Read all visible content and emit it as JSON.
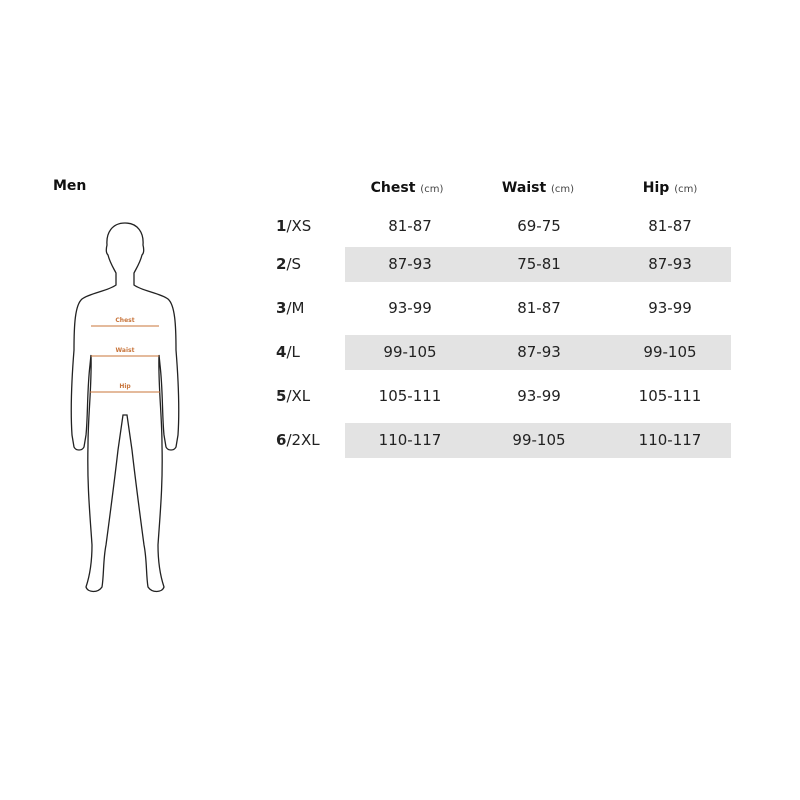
{
  "title": "Men",
  "figure": {
    "labels": [
      "Chest",
      "Waist",
      "Hip"
    ],
    "accent_color": "#c8743a"
  },
  "headers": [
    {
      "name": "Chest",
      "unit": "(cm)"
    },
    {
      "name": "Waist",
      "unit": "(cm)"
    },
    {
      "name": "Hip",
      "unit": "(cm)"
    }
  ],
  "rows": [
    {
      "num": "1",
      "size": "/XS",
      "chest": "81-87",
      "waist": "69-75",
      "hip": "81-87"
    },
    {
      "num": "2",
      "size": "/S",
      "chest": "87-93",
      "waist": "75-81",
      "hip": "87-93"
    },
    {
      "num": "3",
      "size": "/M",
      "chest": "93-99",
      "waist": "81-87",
      "hip": "93-99"
    },
    {
      "num": "4",
      "size": "/L",
      "chest": "99-105",
      "waist": "87-93",
      "hip": "99-105"
    },
    {
      "num": "5",
      "size": "/XL",
      "chest": "105-111",
      "waist": "93-99",
      "hip": "105-111"
    },
    {
      "num": "6",
      "size": "/2XL",
      "chest": "110-117",
      "waist": "99-105",
      "hip": "110-117"
    }
  ]
}
